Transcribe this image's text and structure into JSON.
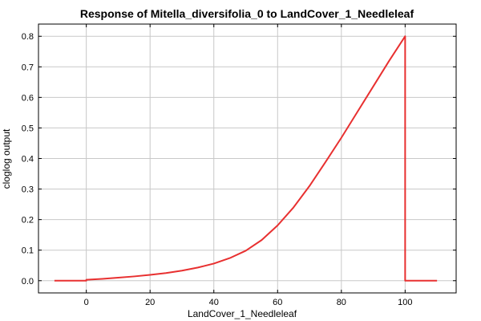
{
  "chart_data": {
    "type": "line",
    "title": "Response of Mitella_diversifolia_0 to LandCover_1_Needleleaf",
    "xlabel": "LandCover_1_Needleleaf",
    "ylabel": "cloglog output",
    "xlim": [
      -15,
      116
    ],
    "ylim": [
      -0.04,
      0.84
    ],
    "xticks": [
      0,
      20,
      40,
      60,
      80,
      100
    ],
    "yticks": [
      0.0,
      0.1,
      0.2,
      0.3,
      0.4,
      0.5,
      0.6,
      0.7,
      0.8
    ],
    "ytick_labels": [
      "0.0",
      "0.1",
      "0.2",
      "0.3",
      "0.4",
      "0.5",
      "0.6",
      "0.7",
      "0.8"
    ],
    "grid": true,
    "legend": "none",
    "series": [
      {
        "color": "#e83030",
        "x": [
          -10,
          0,
          0,
          5,
          10,
          15,
          20,
          25,
          30,
          35,
          40,
          45,
          50,
          55,
          60,
          65,
          70,
          75,
          80,
          85,
          90,
          95,
          100,
          100,
          110
        ],
        "y": [
          0.0,
          0.0,
          0.003,
          0.006,
          0.01,
          0.014,
          0.019,
          0.025,
          0.033,
          0.043,
          0.056,
          0.074,
          0.098,
          0.133,
          0.181,
          0.24,
          0.31,
          0.388,
          0.468,
          0.552,
          0.636,
          0.72,
          0.8,
          0.0,
          0.0
        ]
      }
    ]
  }
}
